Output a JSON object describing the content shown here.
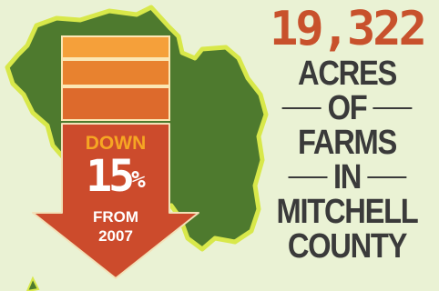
{
  "headline": {
    "number": "19,322",
    "lines": [
      "ACRES",
      "OF",
      "FARMS",
      "IN",
      "MITCHELL",
      "COUNTY"
    ]
  },
  "arrow": {
    "direction_label": "DOWN",
    "percent_number": "15",
    "percent_sign": "%",
    "from_label": "FROM",
    "year": "2007"
  },
  "colors": {
    "background": "#eaf2d4",
    "map_fill": "#4e7a2e",
    "map_outline": "#d8e84a",
    "arrow_red": "#cc4b2c",
    "bar_light": "#f5a03a",
    "bar_mid": "#e8822f",
    "bar_dark": "#dd6a2c",
    "headline_orange": "#c8512c",
    "text_dark": "#3a3a3a"
  }
}
